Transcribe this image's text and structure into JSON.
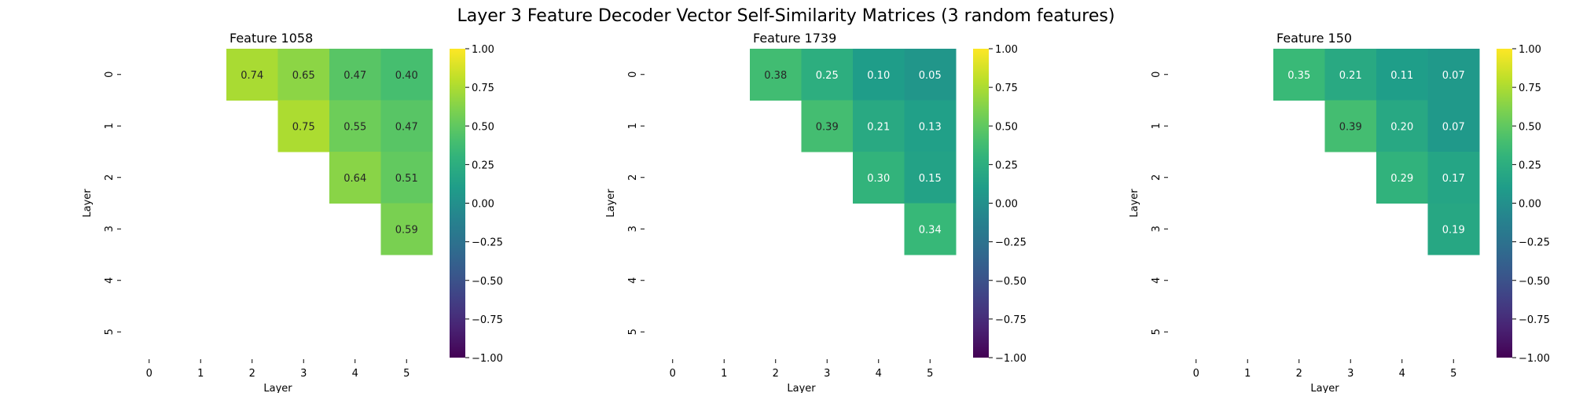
{
  "figure": {
    "suptitle": "Layer 3 Feature Decoder Vector Self-Similarity Matrices (3 random features)"
  },
  "chart_data": [
    {
      "type": "heatmap",
      "title": "Feature 1058",
      "xlabel": "Layer",
      "ylabel": "Layer",
      "x_ticks": [
        "0",
        "1",
        "2",
        "3",
        "4",
        "5"
      ],
      "y_ticks": [
        "0",
        "1",
        "2",
        "3",
        "4",
        "5"
      ],
      "colormap": "viridis",
      "vmin": -1.0,
      "vmax": 1.0,
      "colorbar_ticks": [
        "1.00",
        "0.75",
        "0.50",
        "0.25",
        "0.00",
        "−0.25",
        "−0.50",
        "−0.75",
        "−1.00"
      ],
      "matrix": [
        [
          null,
          null,
          0.74,
          0.65,
          0.47,
          0.4
        ],
        [
          null,
          null,
          null,
          0.75,
          0.55,
          0.47
        ],
        [
          null,
          null,
          null,
          null,
          0.64,
          0.51
        ],
        [
          null,
          null,
          null,
          null,
          null,
          0.59
        ],
        [
          null,
          null,
          null,
          null,
          null,
          null
        ],
        [
          null,
          null,
          null,
          null,
          null,
          null
        ]
      ]
    },
    {
      "type": "heatmap",
      "title": "Feature 1739",
      "xlabel": "Layer",
      "ylabel": "Layer",
      "x_ticks": [
        "0",
        "1",
        "2",
        "3",
        "4",
        "5"
      ],
      "y_ticks": [
        "0",
        "1",
        "2",
        "3",
        "4",
        "5"
      ],
      "colormap": "viridis",
      "vmin": -1.0,
      "vmax": 1.0,
      "colorbar_ticks": [
        "1.00",
        "0.75",
        "0.50",
        "0.25",
        "0.00",
        "−0.25",
        "−0.50",
        "−0.75",
        "−1.00"
      ],
      "matrix": [
        [
          null,
          null,
          0.38,
          0.25,
          0.1,
          0.05
        ],
        [
          null,
          null,
          null,
          0.39,
          0.21,
          0.13
        ],
        [
          null,
          null,
          null,
          null,
          0.3,
          0.15
        ],
        [
          null,
          null,
          null,
          null,
          null,
          0.34
        ],
        [
          null,
          null,
          null,
          null,
          null,
          null
        ],
        [
          null,
          null,
          null,
          null,
          null,
          null
        ]
      ]
    },
    {
      "type": "heatmap",
      "title": "Feature 150",
      "xlabel": "Layer",
      "ylabel": "Layer",
      "x_ticks": [
        "0",
        "1",
        "2",
        "3",
        "4",
        "5"
      ],
      "y_ticks": [
        "0",
        "1",
        "2",
        "3",
        "4",
        "5"
      ],
      "colormap": "viridis",
      "vmin": -1.0,
      "vmax": 1.0,
      "colorbar_ticks": [
        "1.00",
        "0.75",
        "0.50",
        "0.25",
        "0.00",
        "−0.25",
        "−0.50",
        "−0.75",
        "−1.00"
      ],
      "matrix": [
        [
          null,
          null,
          0.35,
          0.21,
          0.11,
          0.07
        ],
        [
          null,
          null,
          null,
          0.39,
          0.2,
          0.07
        ],
        [
          null,
          null,
          null,
          null,
          0.29,
          0.17
        ],
        [
          null,
          null,
          null,
          null,
          null,
          0.19
        ],
        [
          null,
          null,
          null,
          null,
          null,
          null
        ],
        [
          null,
          null,
          null,
          null,
          null,
          null
        ]
      ]
    }
  ]
}
